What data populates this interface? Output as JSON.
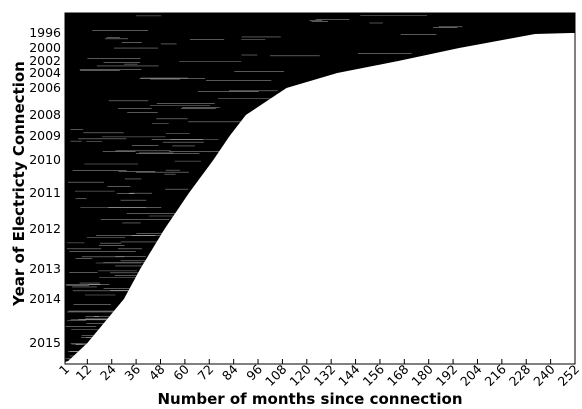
{
  "chart_data": {
    "type": "area",
    "title": "",
    "xlabel": "Number of months since connection",
    "ylabel": "Year of Electricty Connection",
    "xlim": [
      1,
      252
    ],
    "x_ticks": [
      1,
      12,
      24,
      36,
      48,
      60,
      72,
      84,
      96,
      108,
      120,
      132,
      144,
      156,
      168,
      180,
      192,
      204,
      216,
      228,
      240,
      252
    ],
    "y_ticks": [
      "1996",
      "2000",
      "2002",
      "2004",
      "2006",
      "2008",
      "2009",
      "2010",
      "2011",
      "2012",
      "2013",
      "2014",
      "2015"
    ],
    "grid": false,
    "legend": "none",
    "band_color": "#000000",
    "boundary": {
      "description": "Right edge of the filled band per connection year (months of data available)",
      "points": [
        {
          "year": "2015",
          "months": 12
        },
        {
          "year": "2014",
          "months": 30
        },
        {
          "year": "2013",
          "months": 38
        },
        {
          "year": "2012",
          "months": 50
        },
        {
          "year": "2011",
          "months": 62
        },
        {
          "year": "2010",
          "months": 74
        },
        {
          "year": "2009",
          "months": 82
        },
        {
          "year": "2008",
          "months": 90
        },
        {
          "year": "2006",
          "months": 110
        },
        {
          "year": "2004",
          "months": 135
        },
        {
          "year": "2002",
          "months": 165
        },
        {
          "year": "2000",
          "months": 195
        },
        {
          "year": "1996",
          "months": 235
        }
      ]
    }
  }
}
